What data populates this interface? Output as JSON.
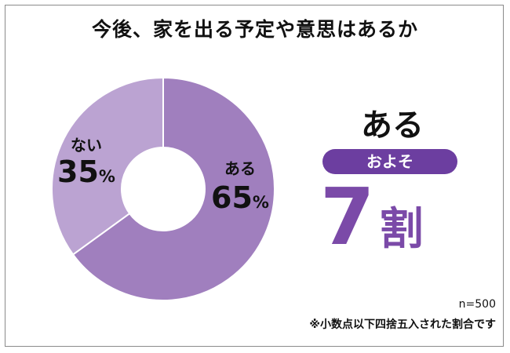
{
  "title": "今後、家を出る予定や意思はあるか",
  "chart_data": {
    "type": "pie",
    "categories": [
      "ある",
      "ない"
    ],
    "values": [
      65,
      35
    ],
    "value_suffix": "%",
    "colors": [
      "#a07fbe",
      "#bba3d2"
    ]
  },
  "callout": {
    "label": "ある",
    "badge": "およそ",
    "number": "7",
    "unit": "割",
    "accent": "#6c3ea0",
    "number_color": "#7b4aa8"
  },
  "notes": {
    "sample": "n=500",
    "rounding": "※小数点以下四捨五入された割合です"
  }
}
